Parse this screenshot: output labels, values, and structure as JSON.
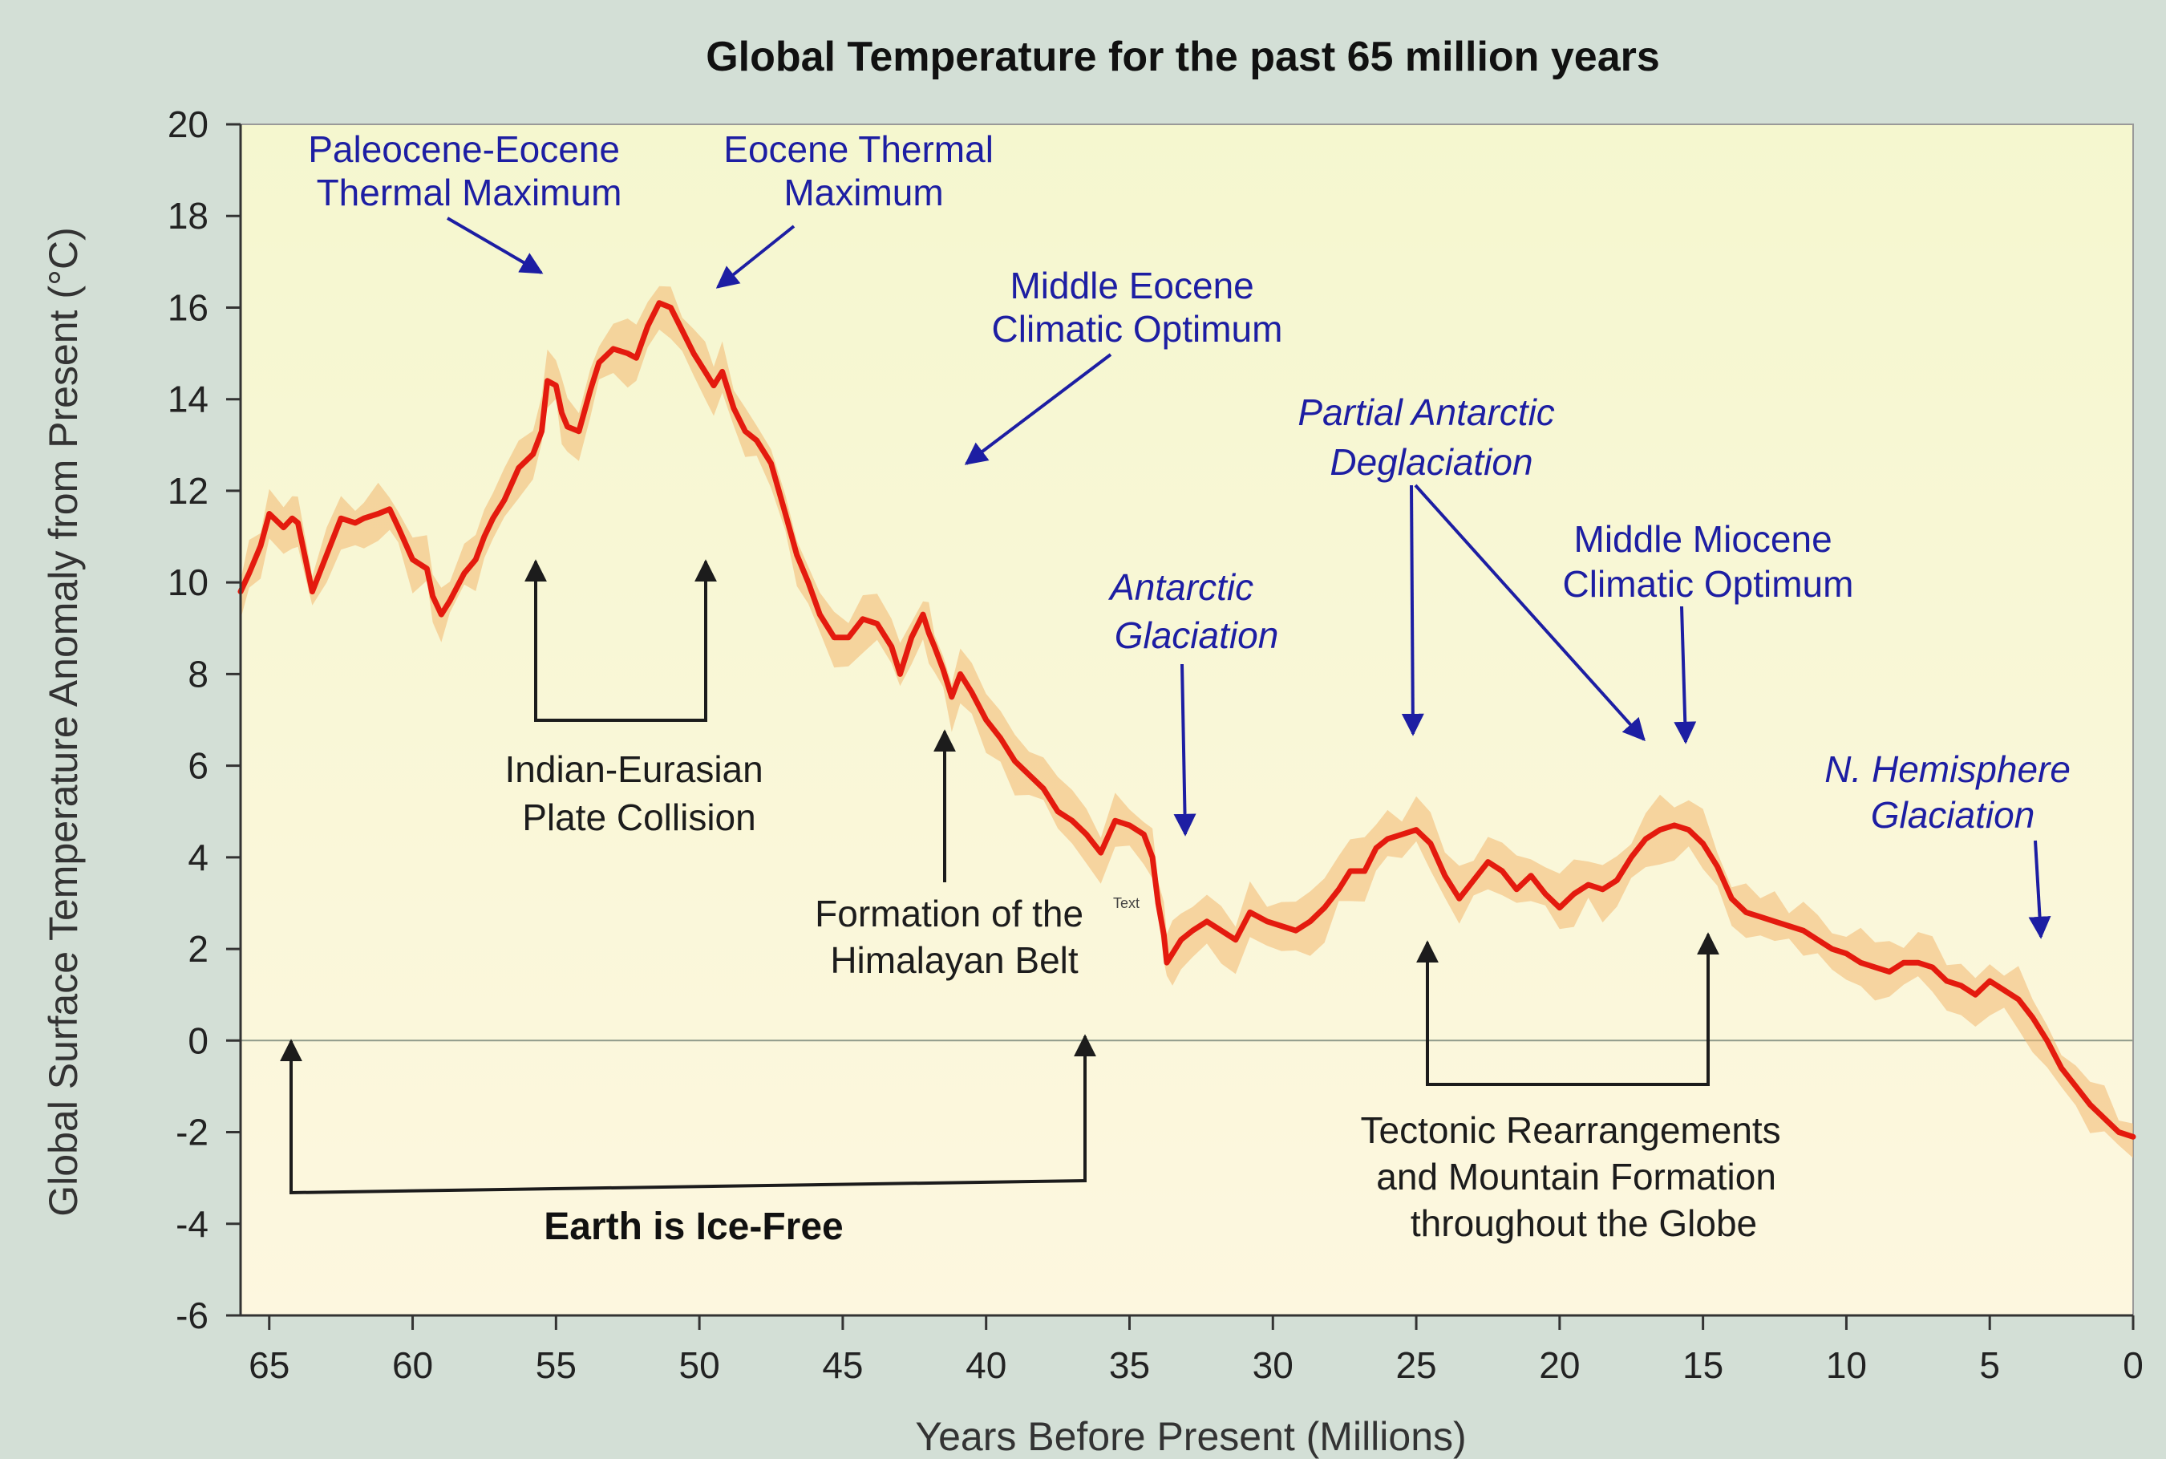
{
  "chart_data": {
    "type": "line",
    "title": "Global Temperature for the past 65 million years",
    "xlabel": "Years Before Present (Millions)",
    "ylabel": "Global Surface Temperature Anomaly from Present (°C)",
    "xlim": [
      66,
      0
    ],
    "ylim": [
      -6,
      20
    ],
    "x_ticks": [
      65,
      60,
      55,
      50,
      45,
      40,
      35,
      30,
      25,
      20,
      15,
      10,
      5,
      0
    ],
    "y_ticks": [
      20,
      18,
      16,
      14,
      12,
      10,
      8,
      6,
      4,
      2,
      0,
      -2,
      -4,
      -6
    ],
    "grid": false,
    "zero_line": 0,
    "series": [
      {
        "color": "#e41a0e",
        "x": [
          66,
          65.7,
          65.3,
          65,
          64.5,
          64.2,
          64,
          63.5,
          63,
          62.5,
          62,
          61.7,
          61.2,
          60.8,
          60.5,
          60,
          59.5,
          59.3,
          59,
          58.7,
          58.2,
          57.8,
          57.5,
          57.2,
          56.8,
          56.3,
          55.8,
          55.5,
          55.3,
          55,
          54.8,
          54.6,
          54.2,
          53.8,
          53.5,
          53,
          52.5,
          52.2,
          51.8,
          51.4,
          51,
          50.6,
          50.2,
          49.8,
          49.5,
          49.2,
          48.8,
          48.4,
          48,
          47.5,
          47,
          46.6,
          46.2,
          45.8,
          45.3,
          44.8,
          44.3,
          43.8,
          43.3,
          43,
          42.6,
          42.2,
          42,
          41.8,
          41.5,
          41.2,
          40.9,
          40.5,
          40,
          39.5,
          39,
          38.5,
          38,
          37.5,
          37,
          36.5,
          36,
          35.5,
          35,
          34.5,
          34.2,
          34,
          33.8,
          33.7,
          33.5,
          33.2,
          32.8,
          32.3,
          31.8,
          31.3,
          30.8,
          30.2,
          29.7,
          29.2,
          28.7,
          28.2,
          27.7,
          27.3,
          26.8,
          26.4,
          26,
          25.5,
          25,
          24.5,
          24,
          23.5,
          23,
          22.5,
          22,
          21.5,
          21,
          20.5,
          20,
          19.5,
          19,
          18.5,
          18,
          17.5,
          17,
          16.5,
          16,
          15.5,
          15,
          14.5,
          14,
          13.5,
          13,
          12.5,
          12,
          11.5,
          11,
          10.5,
          10,
          9.5,
          9,
          8.5,
          8,
          7.5,
          7,
          6.5,
          6,
          5.5,
          5,
          4.5,
          4,
          3.5,
          3,
          2.5,
          2,
          1.5,
          1,
          0.5,
          0
        ],
        "y": [
          9.8,
          10.2,
          10.8,
          11.5,
          11.2,
          11.4,
          11.3,
          9.8,
          10.6,
          11.4,
          11.3,
          11.4,
          11.5,
          11.6,
          11.2,
          10.5,
          10.3,
          9.7,
          9.3,
          9.6,
          10.2,
          10.5,
          11,
          11.4,
          11.8,
          12.5,
          12.8,
          13.3,
          14.4,
          14.3,
          13.7,
          13.4,
          13.3,
          14.2,
          14.8,
          15.1,
          15.0,
          14.9,
          15.6,
          16.1,
          16,
          15.5,
          15,
          14.6,
          14.3,
          14.6,
          13.8,
          13.3,
          13.1,
          12.6,
          11.5,
          10.6,
          10.0,
          9.3,
          8.8,
          8.8,
          9.2,
          9.1,
          8.6,
          8.0,
          8.8,
          9.3,
          8.9,
          8.6,
          8.1,
          7.5,
          8.0,
          7.6,
          7.0,
          6.6,
          6.1,
          5.8,
          5.5,
          5.0,
          4.8,
          4.5,
          4.1,
          4.8,
          4.7,
          4.5,
          4.0,
          3.0,
          2.3,
          1.7,
          1.9,
          2.2,
          2.4,
          2.6,
          2.4,
          2.2,
          2.8,
          2.6,
          2.5,
          2.4,
          2.6,
          2.9,
          3.3,
          3.7,
          3.7,
          4.2,
          4.4,
          4.5,
          4.6,
          4.3,
          3.6,
          3.1,
          3.5,
          3.9,
          3.7,
          3.3,
          3.6,
          3.2,
          2.9,
          3.2,
          3.4,
          3.3,
          3.5,
          4.0,
          4.4,
          4.6,
          4.7,
          4.6,
          4.3,
          3.8,
          3.1,
          2.8,
          2.7,
          2.6,
          2.5,
          2.4,
          2.2,
          2.0,
          1.9,
          1.7,
          1.6,
          1.5,
          1.7,
          1.7,
          1.6,
          1.3,
          1.2,
          1.0,
          1.3,
          1.1,
          0.9,
          0.5,
          0.0,
          -0.6,
          -1.0,
          -1.4,
          -1.7,
          -2.0,
          -2.1
        ]
      }
    ]
  },
  "annotations": {
    "petm": [
      "Paleocene-Eocene",
      "Thermal Maximum"
    ],
    "etm": [
      "Eocene Thermal",
      "Maximum"
    ],
    "meco": [
      "Middle Eocene",
      "Climatic Optimum"
    ],
    "pad": [
      "Partial Antarctic",
      "Deglaciation"
    ],
    "mmco": [
      "Middle Miocene",
      "Climatic Optimum"
    ],
    "ag": [
      "Antarctic",
      "Glaciation"
    ],
    "nhg": [
      "N. Hemisphere",
      "Glaciation"
    ],
    "iepc": [
      "Indian-Eurasian",
      "Plate Collision"
    ],
    "himalaya": [
      "Formation of the",
      "Himalayan Belt"
    ],
    "himalaya_mark": "Text",
    "tectonic": [
      "Tectonic Rearrangements",
      "and Mountain Formation",
      "throughout the Globe"
    ],
    "icefree": "Earth is Ice-Free"
  }
}
